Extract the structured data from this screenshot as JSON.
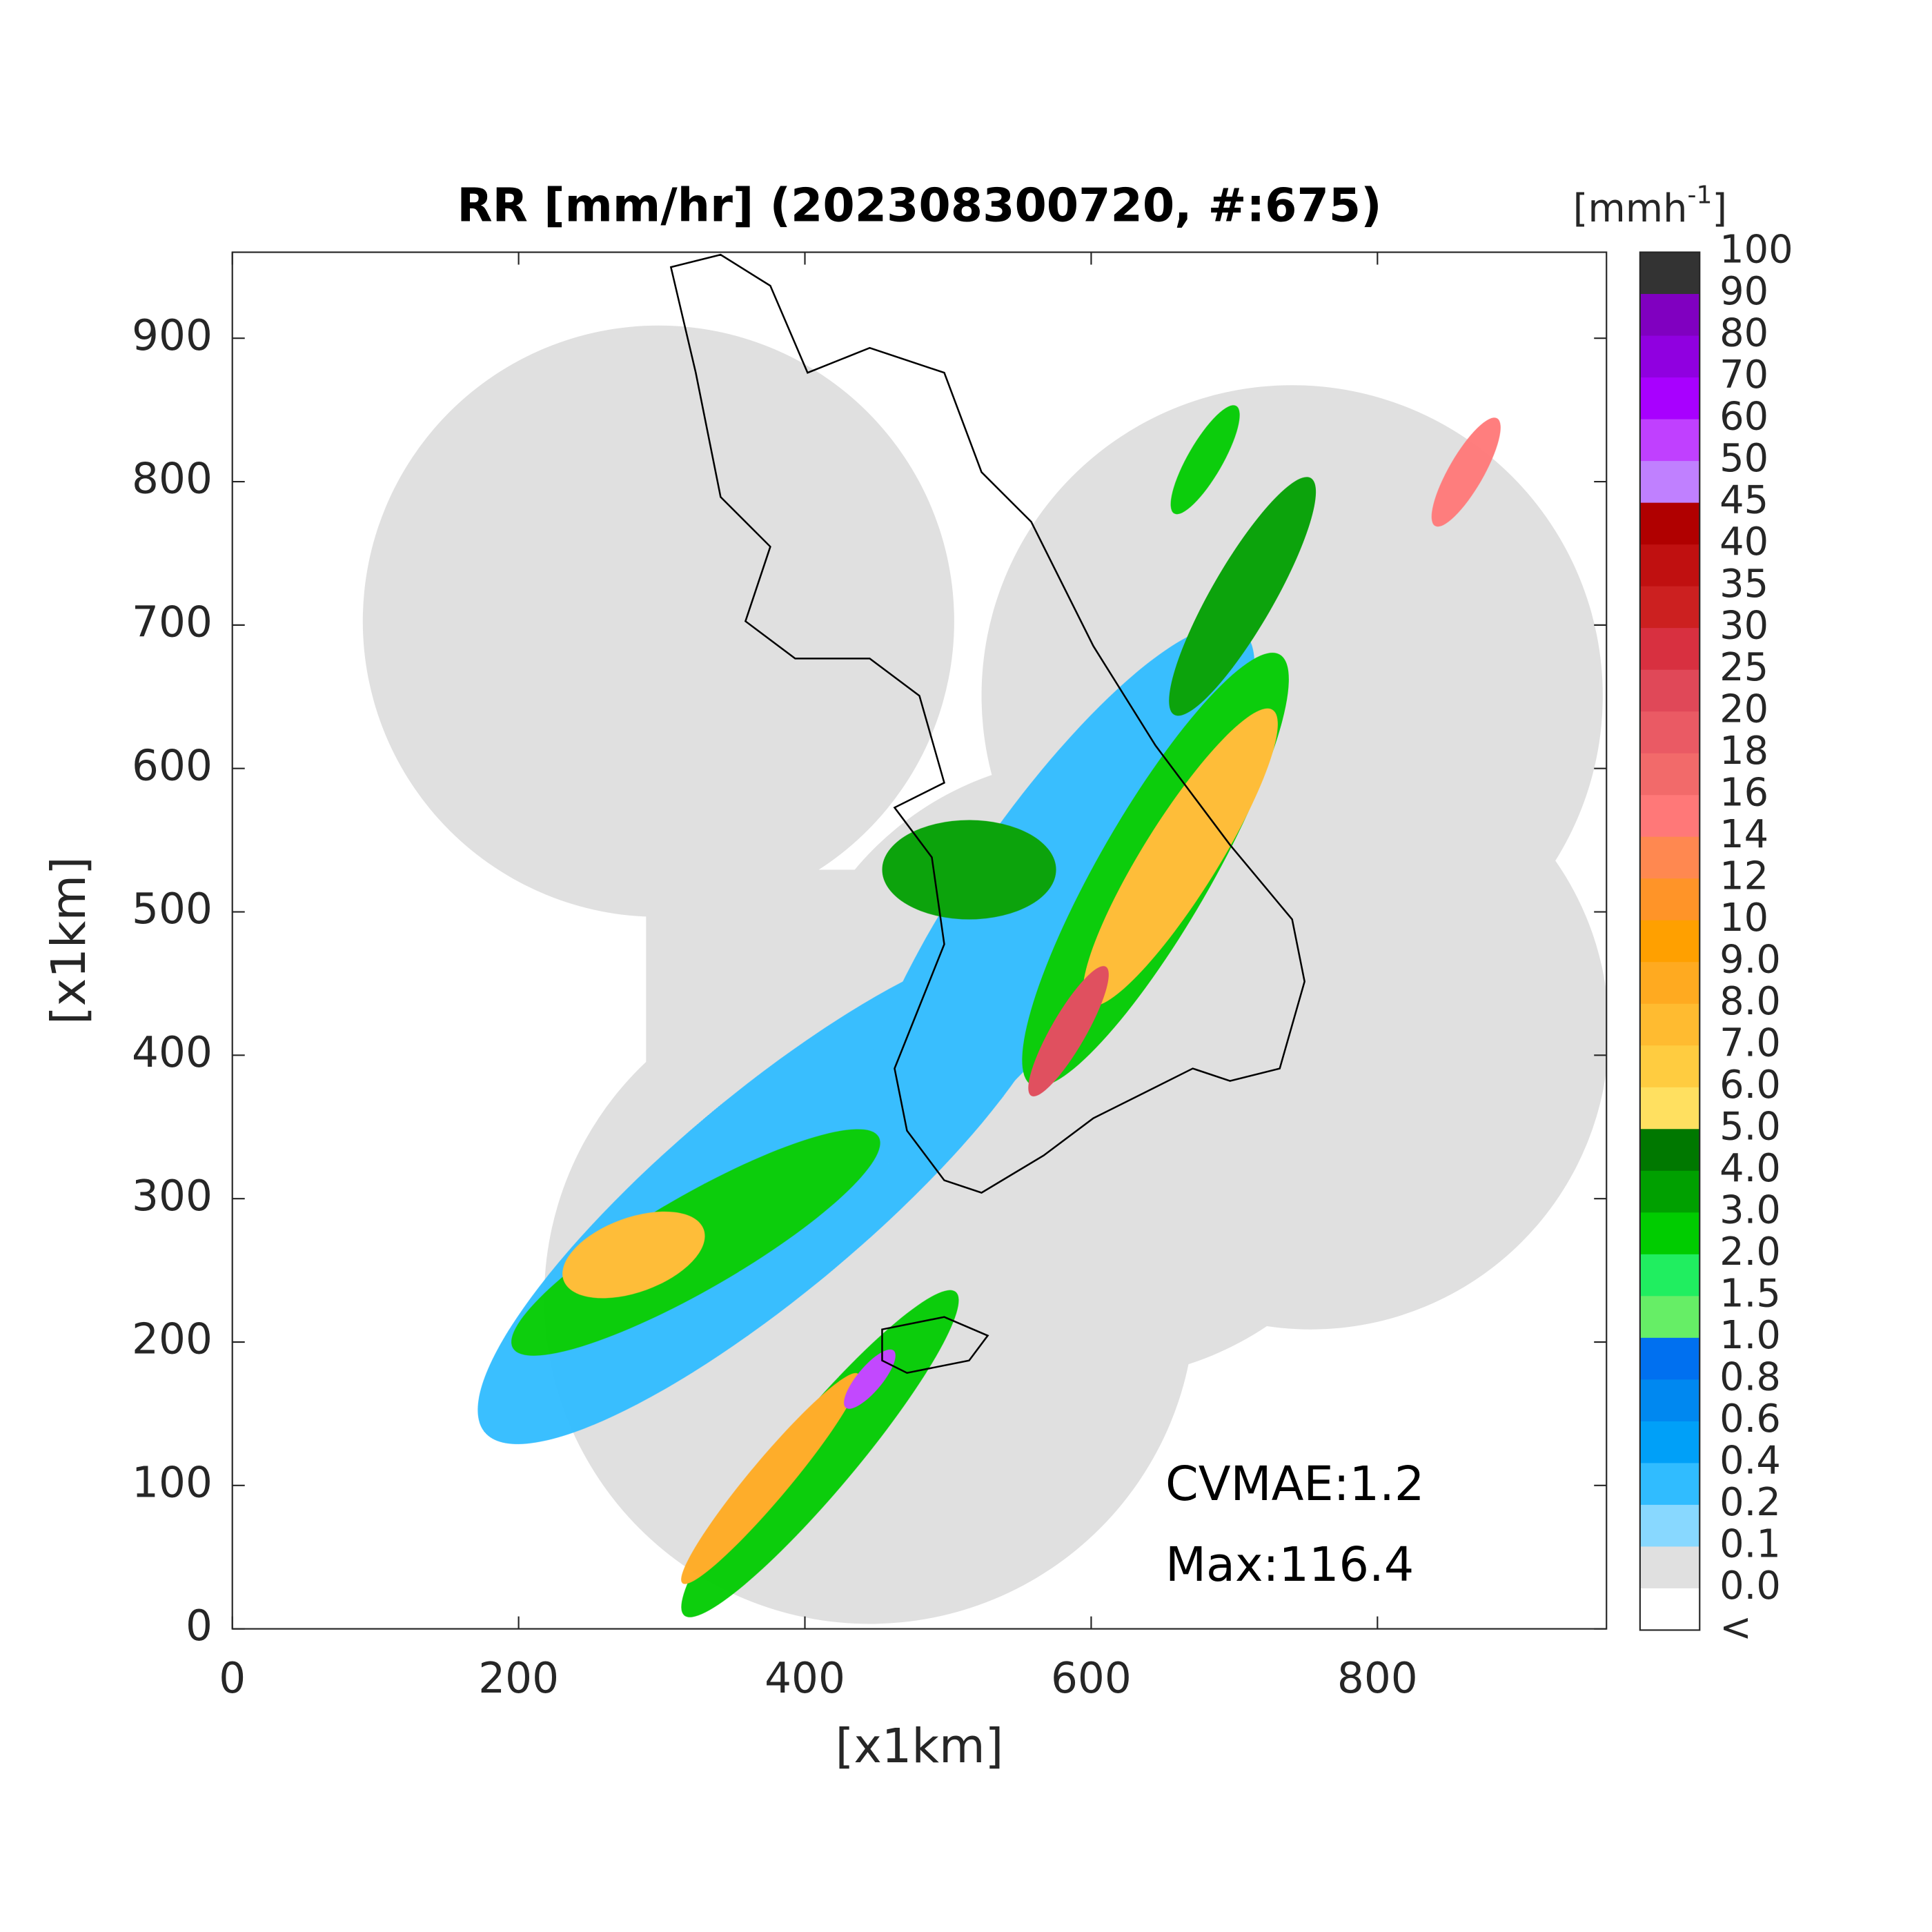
{
  "map": {
    "title": "RR [mm/hr] (202308300720, #:675)",
    "xlabel": "[x1km]",
    "ylabel": "[x1km]",
    "xlim": [
      0,
      960
    ],
    "ylim": [
      0,
      960
    ],
    "xticks": [
      0,
      200,
      400,
      600,
      800
    ],
    "yticks": [
      0,
      100,
      200,
      300,
      400,
      500,
      600,
      700,
      800,
      900
    ],
    "annotations": [
      "CVMAE:1.2",
      "Max:116.4"
    ],
    "colorbar": {
      "unit": {
        "base": "[mmh",
        "sup": "-1",
        "close": "]"
      },
      "levels": [
        100,
        90,
        80,
        70,
        60,
        50,
        45,
        40,
        35,
        30,
        25,
        20,
        18,
        16,
        14,
        12,
        10,
        {
          "value": 9,
          "label": "9.0"
        },
        {
          "value": 8,
          "label": "8.0"
        },
        {
          "value": 7,
          "label": "7.0"
        },
        {
          "value": 6,
          "label": "6.0"
        },
        {
          "value": 5,
          "label": "5.0"
        },
        {
          "value": 4,
          "label": "4.0"
        },
        {
          "value": 3,
          "label": "3.0"
        },
        {
          "value": 2,
          "label": "2.0"
        },
        1.5,
        {
          "value": 1,
          "label": "1.0"
        },
        0.8,
        0.6,
        0.4,
        0.2,
        0.1,
        {
          "value": 0,
          "label": "0.0"
        },
        "<"
      ],
      "colors": [
        "#333333",
        "#8000c0",
        "#9000e0",
        "#a800ff",
        "#c040ff",
        "#c080ff",
        "#b00000",
        "#c01010",
        "#cc2020",
        "#d83040",
        "#e04858",
        "#ea5a64",
        "#f26a6a",
        "#ff7878",
        "#ff8850",
        "#ff9428",
        "#ffa000",
        "#ffaa20",
        "#ffbb30",
        "#ffcc40",
        "#ffe060",
        "#007800",
        "#00a000",
        "#00cc00",
        "#20ee60",
        "#66ee66",
        "#0070f0",
        "#0088f0",
        "#00a0f8",
        "#30bcff",
        "#88d8ff",
        "#e0e0e0",
        "#ffffff"
      ]
    }
  }
}
